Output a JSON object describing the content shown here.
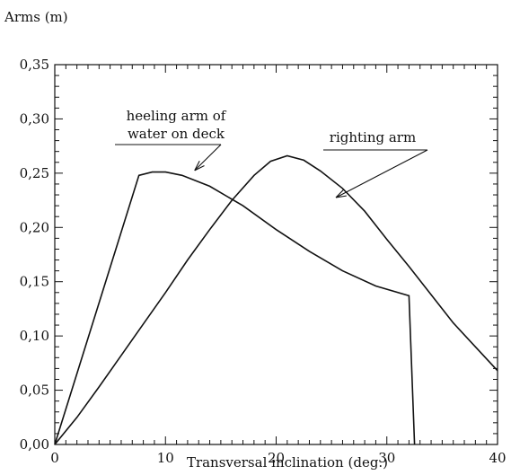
{
  "chart_data": {
    "type": "line",
    "ylabel": "Arms (m)",
    "xlabel": "Transversal inclination (deg.)",
    "xlim": [
      0,
      40
    ],
    "ylim": [
      0,
      0.35
    ],
    "x_ticks": [
      0,
      10,
      20,
      30,
      40
    ],
    "x_tick_labels": [
      "0",
      "10",
      "20",
      "30",
      "40"
    ],
    "y_ticks": [
      0,
      0.05,
      0.1,
      0.15,
      0.2,
      0.25,
      0.3,
      0.35
    ],
    "y_tick_labels": [
      "0,00",
      "0,05",
      "0,10",
      "0,15",
      "0,20",
      "0,25",
      "0,30",
      "0,35"
    ],
    "grid": false,
    "series": [
      {
        "name": "heeling arm of water on deck",
        "x": [
          0,
          7.6,
          8.8,
          10,
          11.5,
          14,
          17,
          20,
          23,
          26,
          29,
          32,
          32.5
        ],
        "y": [
          0,
          0.248,
          0.251,
          0.251,
          0.248,
          0.238,
          0.22,
          0.198,
          0.178,
          0.16,
          0.146,
          0.137,
          0
        ]
      },
      {
        "name": "righting arm",
        "x": [
          0,
          2,
          4,
          6,
          8,
          10,
          12,
          14,
          16,
          18,
          19.5,
          21,
          22.5,
          24,
          26,
          28,
          30,
          32,
          34,
          36,
          38,
          40
        ],
        "y": [
          0,
          0.025,
          0.053,
          0.082,
          0.111,
          0.14,
          0.17,
          0.198,
          0.225,
          0.248,
          0.261,
          0.266,
          0.262,
          0.252,
          0.236,
          0.215,
          0.189,
          0.164,
          0.138,
          0.112,
          0.09,
          0.068
        ]
      }
    ],
    "annotations": [
      {
        "text_lines": [
          "heeling arm of",
          "water on deck"
        ],
        "target": [
          11.5,
          0.25
        ]
      },
      {
        "text_lines": [
          "righting arm"
        ],
        "target": [
          26,
          0.264
        ],
        "target2": [
          25.5,
          0.212
        ]
      }
    ]
  }
}
